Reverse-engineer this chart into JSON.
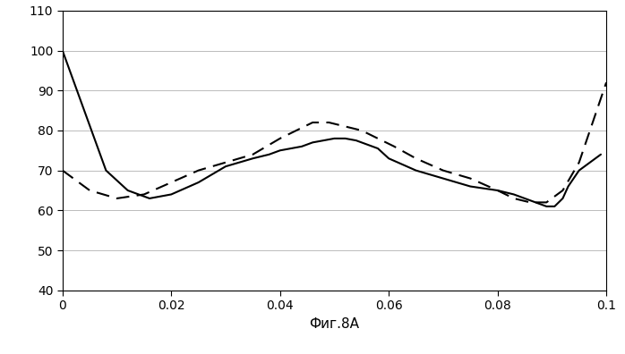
{
  "solid_x": [
    0,
    0.004,
    0.008,
    0.012,
    0.016,
    0.02,
    0.025,
    0.03,
    0.035,
    0.038,
    0.04,
    0.042,
    0.044,
    0.046,
    0.048,
    0.05,
    0.052,
    0.054,
    0.056,
    0.058,
    0.06,
    0.065,
    0.07,
    0.075,
    0.08,
    0.083,
    0.085,
    0.087,
    0.089,
    0.0905,
    0.092,
    0.093,
    0.094,
    0.095,
    0.096,
    0.097,
    0.098,
    0.099
  ],
  "solid_y": [
    100,
    85,
    70,
    65,
    63,
    64,
    67,
    71,
    73,
    74,
    75,
    75.5,
    76,
    77,
    77.5,
    78,
    78,
    77.5,
    76.5,
    75.5,
    73,
    70,
    68,
    66,
    65,
    64,
    63,
    62,
    61,
    61,
    63,
    66,
    68,
    70,
    71,
    72,
    73,
    74
  ],
  "dashed_x": [
    0,
    0.005,
    0.01,
    0.015,
    0.02,
    0.025,
    0.03,
    0.035,
    0.04,
    0.043,
    0.046,
    0.049,
    0.052,
    0.055,
    0.058,
    0.061,
    0.065,
    0.07,
    0.075,
    0.08,
    0.083,
    0.086,
    0.089,
    0.092,
    0.095,
    0.097,
    0.099,
    0.1
  ],
  "dashed_y": [
    70,
    65,
    63,
    64,
    67,
    70,
    72,
    74,
    78,
    80,
    82,
    82,
    81,
    80,
    78,
    76,
    73,
    70,
    68,
    65,
    63,
    62,
    62,
    65,
    72,
    80,
    88,
    92
  ],
  "xlim": [
    0,
    0.1
  ],
  "ylim": [
    40,
    110
  ],
  "yticks": [
    40,
    50,
    60,
    70,
    80,
    90,
    100,
    110
  ],
  "xticks": [
    0,
    0.02,
    0.04,
    0.06,
    0.08,
    0.1
  ],
  "xlabel": "Фиг.8A",
  "solid_color": "#000000",
  "dashed_color": "#000000",
  "background_color": "#ffffff",
  "grid_color": "#bbbbbb"
}
